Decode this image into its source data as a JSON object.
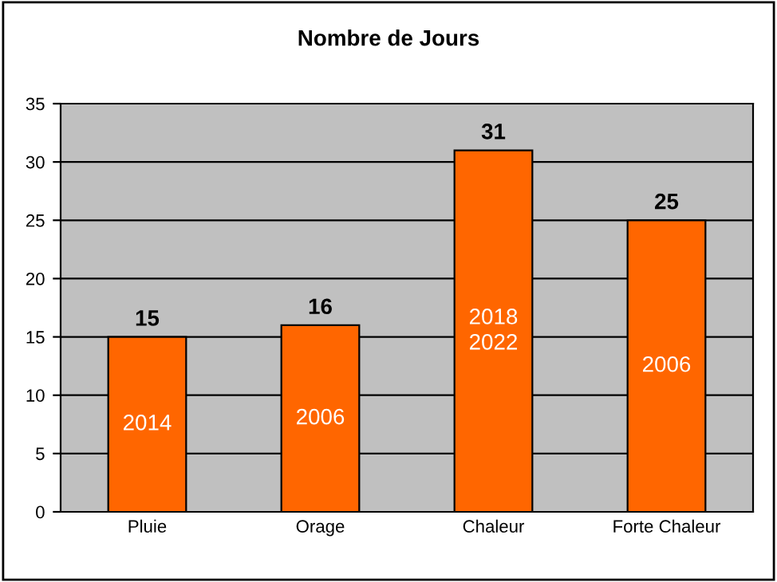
{
  "chart_data": {
    "type": "bar",
    "title": "Nombre de Jours",
    "categories": [
      "Pluie",
      "Orage",
      "Chaleur",
      "Forte Chaleur"
    ],
    "values": [
      15,
      16,
      31,
      25
    ],
    "color": "#ff6600",
    "data_labels": true,
    "ylim": [
      0,
      35
    ],
    "yticks": [
      0,
      5,
      10,
      15,
      20,
      25,
      30,
      35
    ],
    "grid": "y",
    "annotations": [
      "2014",
      "2006",
      "2018\n2022",
      "2006"
    ]
  }
}
